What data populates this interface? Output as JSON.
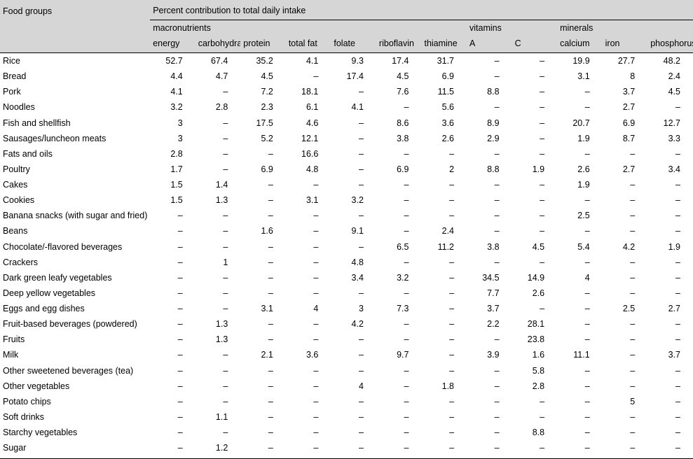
{
  "header": {
    "title_left": "Food groups",
    "title_right": "Percent contribution to total daily intake",
    "group_macronutrients": "macronutrients",
    "group_vitamins": "vitamins",
    "group_minerals": "minerals"
  },
  "columns": [
    "energy",
    "carbohydrates",
    "protein",
    "total fat",
    "folate",
    "riboflavin",
    "thiamine",
    "A",
    "C",
    "calcium",
    "iron",
    "phosphorus"
  ],
  "rows": [
    {
      "name": "Rice",
      "v": [
        "52.7",
        "67.4",
        "35.2",
        "4.1",
        "9.3",
        "17.4",
        "31.7",
        "–",
        "–",
        "19.9",
        "27.7",
        "48.2"
      ]
    },
    {
      "name": "Bread",
      "v": [
        "4.4",
        "4.7",
        "4.5",
        "–",
        "17.4",
        "4.5",
        "6.9",
        "–",
        "–",
        "3.1",
        "8",
        "2.4"
      ]
    },
    {
      "name": "Pork",
      "v": [
        "4.1",
        "–",
        "7.2",
        "18.1",
        "–",
        "7.6",
        "11.5",
        "8.8",
        "–",
        "–",
        "3.7",
        "4.5"
      ]
    },
    {
      "name": "Noodles",
      "v": [
        "3.2",
        "2.8",
        "2.3",
        "6.1",
        "4.1",
        "–",
        "5.6",
        "–",
        "–",
        "–",
        "2.7",
        "–"
      ]
    },
    {
      "name": "Fish and shellfish",
      "v": [
        "3",
        "–",
        "17.5",
        "4.6",
        "–",
        "8.6",
        "3.6",
        "8.9",
        "–",
        "20.7",
        "6.9",
        "12.7"
      ]
    },
    {
      "name": "Sausages/luncheon meats",
      "v": [
        "3",
        "–",
        "5.2",
        "12.1",
        "–",
        "3.8",
        "2.6",
        "2.9",
        "–",
        "1.9",
        "8.7",
        "3.3"
      ]
    },
    {
      "name": "Fats and oils",
      "v": [
        "2.8",
        "–",
        "–",
        "16.6",
        "–",
        "–",
        "–",
        "–",
        "–",
        "–",
        "–",
        "–"
      ]
    },
    {
      "name": "Poultry",
      "v": [
        "1.7",
        "–",
        "6.9",
        "4.8",
        "–",
        "6.9",
        "2",
        "8.8",
        "1.9",
        "2.6",
        "2.7",
        "3.4"
      ]
    },
    {
      "name": "Cakes",
      "v": [
        "1.5",
        "1.4",
        "–",
        "–",
        "–",
        "–",
        "–",
        "–",
        "–",
        "1.9",
        "–",
        "–"
      ]
    },
    {
      "name": "Cookies",
      "v": [
        "1.5",
        "1.3",
        "–",
        "3.1",
        "3.2",
        "–",
        "–",
        "–",
        "–",
        "–",
        "–",
        "–"
      ]
    },
    {
      "name": "Banana snacks (with sugar and fried)",
      "v": [
        "–",
        "–",
        "–",
        "–",
        "–",
        "–",
        "–",
        "–",
        "–",
        "2.5",
        "–",
        "–"
      ]
    },
    {
      "name": "Beans",
      "v": [
        "–",
        "–",
        "1.6",
        "–",
        "9.1",
        "–",
        "2.4",
        "–",
        "–",
        "–",
        "–",
        "–"
      ]
    },
    {
      "name": "Chocolate/-flavored beverages",
      "v": [
        "–",
        "–",
        "–",
        "–",
        "–",
        "6.5",
        "11.2",
        "3.8",
        "4.5",
        "5.4",
        "4.2",
        "1.9"
      ]
    },
    {
      "name": "Crackers",
      "v": [
        "–",
        "1",
        "–",
        "–",
        "4.8",
        "–",
        "–",
        "–",
        "–",
        "–",
        "–",
        "–"
      ]
    },
    {
      "name": "Dark green leafy vegetables",
      "v": [
        "–",
        "–",
        "–",
        "–",
        "3.4",
        "3.2",
        "–",
        "34.5",
        "14.9",
        "4",
        "–",
        "–"
      ]
    },
    {
      "name": "Deep yellow vegetables",
      "v": [
        "–",
        "–",
        "–",
        "–",
        "–",
        "–",
        "–",
        "7.7",
        "2.6",
        "–",
        "–",
        "–"
      ]
    },
    {
      "name": "Eggs and egg dishes",
      "v": [
        "–",
        "–",
        "3.1",
        "4",
        "3",
        "7.3",
        "–",
        "3.7",
        "–",
        "–",
        "2.5",
        "2.7"
      ]
    },
    {
      "name": "Fruit-based beverages (powdered)",
      "v": [
        "–",
        "1.3",
        "–",
        "–",
        "4.2",
        "–",
        "–",
        "2.2",
        "28.1",
        "–",
        "–",
        "–"
      ]
    },
    {
      "name": "Fruits",
      "v": [
        "–",
        "1.3",
        "–",
        "–",
        "–",
        "–",
        "–",
        "–",
        "23.8",
        "–",
        "–",
        "–"
      ]
    },
    {
      "name": "Milk",
      "v": [
        "–",
        "–",
        "2.1",
        "3.6",
        "–",
        "9.7",
        "–",
        "3.9",
        "1.6",
        "11.1",
        "–",
        "3.7"
      ]
    },
    {
      "name": "Other sweetened beverages (tea)",
      "v": [
        "–",
        "–",
        "–",
        "–",
        "–",
        "–",
        "–",
        "–",
        "5.8",
        "–",
        "–",
        "–"
      ]
    },
    {
      "name": "Other vegetables",
      "v": [
        "–",
        "–",
        "–",
        "–",
        "4",
        "–",
        "1.8",
        "–",
        "2.8",
        "–",
        "–",
        "–"
      ]
    },
    {
      "name": "Potato chips",
      "v": [
        "–",
        "–",
        "–",
        "–",
        "–",
        "–",
        "–",
        "–",
        "–",
        "–",
        "5",
        "–"
      ]
    },
    {
      "name": "Soft drinks",
      "v": [
        "–",
        "1.1",
        "–",
        "–",
        "–",
        "–",
        "–",
        "–",
        "–",
        "–",
        "–",
        "–"
      ]
    },
    {
      "name": "Starchy vegetables",
      "v": [
        "–",
        "–",
        "–",
        "–",
        "–",
        "–",
        "–",
        "–",
        "8.8",
        "–",
        "–",
        "–"
      ]
    },
    {
      "name": "Sugar",
      "v": [
        "–",
        "1.2",
        "–",
        "–",
        "–",
        "–",
        "–",
        "–",
        "–",
        "–",
        "–",
        "–"
      ]
    }
  ]
}
